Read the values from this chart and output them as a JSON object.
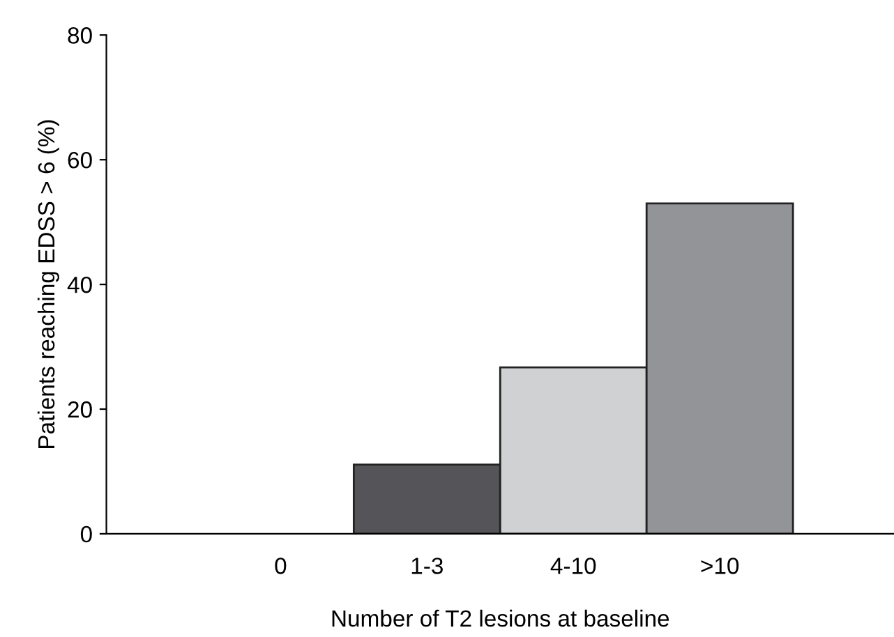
{
  "chart_data": {
    "type": "bar",
    "xlabel": "Number of T2 lesions at baseline",
    "ylabel": "Patients reaching EDSS > 6 (%)",
    "categories": [
      "0",
      "1-3",
      "4-10",
      ">10"
    ],
    "values": [
      0,
      11.1,
      26.7,
      53
    ],
    "colors": [
      "#555559",
      "#555559",
      "#d0d1d3",
      "#939498"
    ],
    "ylim": [
      0,
      80
    ],
    "yticks": [
      0,
      20,
      40,
      60,
      80
    ],
    "grid": false,
    "legend": false
  }
}
